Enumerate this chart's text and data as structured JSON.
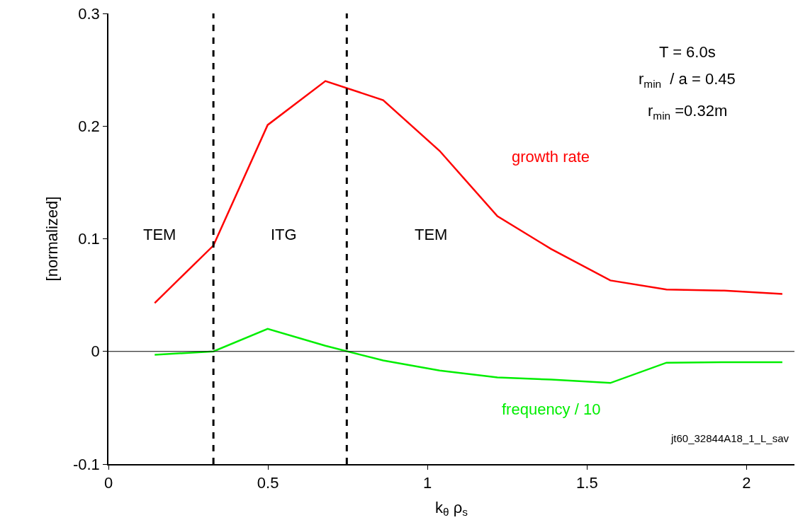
{
  "chart_data": {
    "type": "line",
    "xlabel": "k$_{θ}$ ρ$_{s}$",
    "ylabel": "[normalized]",
    "x": [
      0.145,
      0.329,
      0.499,
      0.68,
      0.861,
      1.038,
      1.219,
      1.387,
      1.573,
      1.749,
      1.93,
      2.112
    ],
    "series": [
      {
        "name": "growth rate",
        "color": "#ff0000",
        "values": [
          0.043,
          0.094,
          0.201,
          0.24,
          0.223,
          0.178,
          0.12,
          0.091,
          0.063,
          0.055,
          0.054,
          0.051
        ]
      },
      {
        "name": "frequency / 10",
        "color": "#00ee00",
        "values": [
          -0.003,
          0.0,
          0.02,
          0.005,
          -0.008,
          -0.017,
          -0.023,
          -0.025,
          -0.028,
          -0.01,
          -0.0095,
          -0.0095
        ]
      }
    ],
    "xlim": [
      0,
      2.15
    ],
    "xticks": [
      0,
      0.5,
      1,
      1.5,
      2
    ],
    "ylim": [
      -0.1,
      0.3
    ],
    "yticks": [
      -0.1,
      0,
      0.1,
      0.2,
      0.3
    ],
    "ref_lines": [
      {
        "axis": "x",
        "value": 0.329,
        "color": "#000000",
        "line_style": "dashed"
      },
      {
        "axis": "x",
        "value": 0.747,
        "color": "#000000",
        "line_style": "dashed"
      },
      {
        "axis": "y",
        "value": 0,
        "color": "#000000",
        "line_style": "solid"
      }
    ],
    "annotations": [
      "TEM",
      "ITG",
      "TEM",
      "T = 6.0s",
      "r$_{min}$  / a = 0.45",
      "r$_{min}$ =0.32m",
      "jt60_32844A18_1_L_sav"
    ],
    "legend": false,
    "marker": "none",
    "line_style": "solid"
  }
}
